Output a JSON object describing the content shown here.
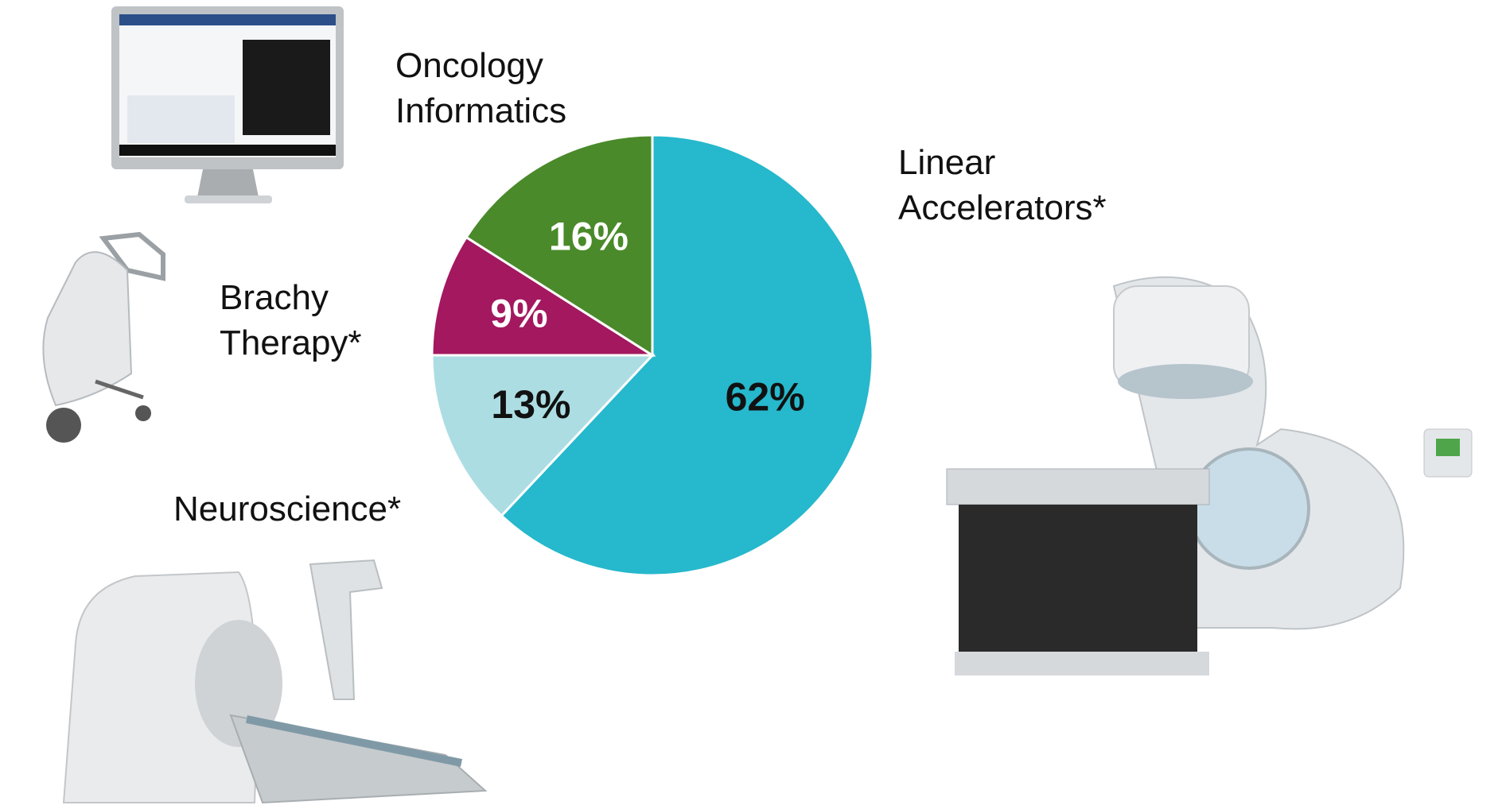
{
  "chart_data": {
    "type": "pie",
    "categories": [
      "Linear Accelerators*",
      "Neuroscience*",
      "Brachy Therapy*",
      "Oncology Informatics"
    ],
    "values": [
      62,
      13,
      9,
      16
    ],
    "value_labels": [
      "62%",
      "13%",
      "9%",
      "16%"
    ],
    "colors": [
      "#26b8cc",
      "#acdde3",
      "#a3185f",
      "#4a8a2a"
    ]
  }
}
